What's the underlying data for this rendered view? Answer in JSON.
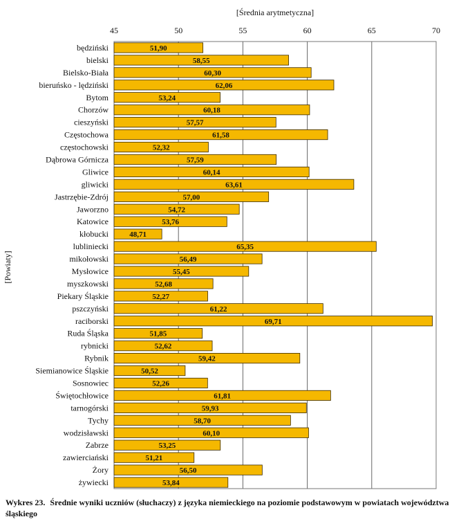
{
  "chart_data": {
    "type": "bar",
    "orientation": "horizontal",
    "x_axis_title": "[Średnia arytmetyczna]",
    "y_axis_title": "[Powiaty]",
    "xlim": [
      45,
      70
    ],
    "x_ticks": [
      "45",
      "50",
      "55",
      "60",
      "65",
      "70"
    ],
    "grid": true,
    "bar_color": "#F5B800",
    "categories": [
      "będziński",
      "bielski",
      "Bielsko-Biała",
      "bieruńsko - lędziński",
      "Bytom",
      "Chorzów",
      "cieszyński",
      "Częstochowa",
      "częstochowski",
      "Dąbrowa Górnicza",
      "Gliwice",
      "gliwicki",
      "Jastrzębie-Zdrój",
      "Jaworzno",
      "Katowice",
      "kłobucki",
      "lubliniecki",
      "mikołowski",
      "Mysłowice",
      "myszkowski",
      "Piekary Śląskie",
      "pszczyński",
      "raciborski",
      "Ruda Śląska",
      "rybnicki",
      "Rybnik",
      "Siemianowice Śląskie",
      "Sosnowiec",
      "Świętochłowice",
      "tarnogórski",
      "Tychy",
      "wodzisławski",
      "Zabrze",
      "zawierciański",
      "Żory",
      "żywiecki"
    ],
    "values": [
      51.9,
      58.55,
      60.3,
      62.06,
      53.24,
      60.18,
      57.57,
      61.58,
      52.32,
      57.59,
      60.14,
      63.61,
      57.0,
      54.72,
      53.76,
      48.71,
      65.35,
      56.49,
      55.45,
      52.68,
      52.27,
      61.22,
      69.71,
      51.85,
      52.62,
      59.42,
      50.52,
      52.26,
      61.81,
      59.93,
      58.7,
      60.1,
      53.25,
      51.21,
      56.5,
      53.84
    ],
    "value_labels": [
      "51,90",
      "58,55",
      "60,30",
      "62,06",
      "53,24",
      "60,18",
      "57,57",
      "61,58",
      "52,32",
      "57,59",
      "60,14",
      "63,61",
      "57,00",
      "54,72",
      "53,76",
      "48,71",
      "65,35",
      "56,49",
      "55,45",
      "52,68",
      "52,27",
      "61,22",
      "69,71",
      "51,85",
      "52,62",
      "59,42",
      "50,52",
      "52,26",
      "61,81",
      "59,93",
      "58,70",
      "60,10",
      "53,25",
      "51,21",
      "56,50",
      "53,84"
    ]
  },
  "caption": {
    "prefix": "Wykres 23.",
    "text": "Średnie wyniki uczniów (słuchaczy) z języka niemieckiego  na poziomie podstawowym w powiatach województwa śląskiego"
  }
}
